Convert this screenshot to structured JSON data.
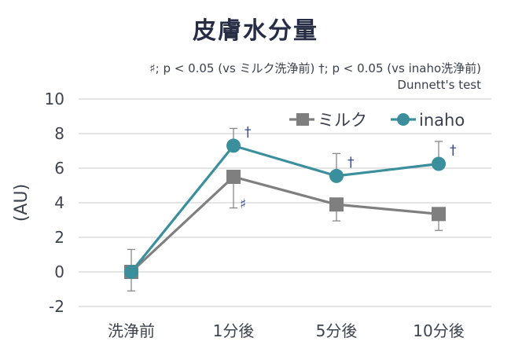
{
  "title": "皮膚水分量",
  "note": "♯; p < 0.05 (vs ミルク洗浄前)  †; p < 0.05 (vs inaho洗浄前)",
  "test": "Dunnett's test",
  "chart_data": {
    "type": "line",
    "title": "皮膚水分量",
    "ylabel": "(AU)",
    "xlabel": "",
    "ylim": [
      -2,
      10
    ],
    "yticks": [
      -2,
      0,
      2,
      4,
      6,
      8,
      10
    ],
    "categories": [
      "洗浄前",
      "1分後",
      "5分後",
      "10分後"
    ],
    "grid": true,
    "legend_position": "top-right",
    "series": [
      {
        "name": "ミルク",
        "color": "#7f7f7f",
        "marker": "square",
        "values": [
          0,
          5.5,
          3.9,
          3.35
        ],
        "err_low": [
          1.1,
          1.8,
          0.95,
          0.95
        ],
        "err_high": [
          1.3,
          0.0,
          0.0,
          0.0
        ],
        "sig": [
          "",
          "♯",
          "",
          ""
        ]
      },
      {
        "name": "inaho",
        "color": "#3b8f9c",
        "marker": "circle",
        "values": [
          0,
          7.3,
          5.55,
          6.25
        ],
        "err_low": [
          0,
          0,
          0,
          0
        ],
        "err_high": [
          0,
          1.0,
          1.3,
          1.3
        ],
        "sig": [
          "",
          "†",
          "†",
          "†"
        ]
      }
    ]
  }
}
